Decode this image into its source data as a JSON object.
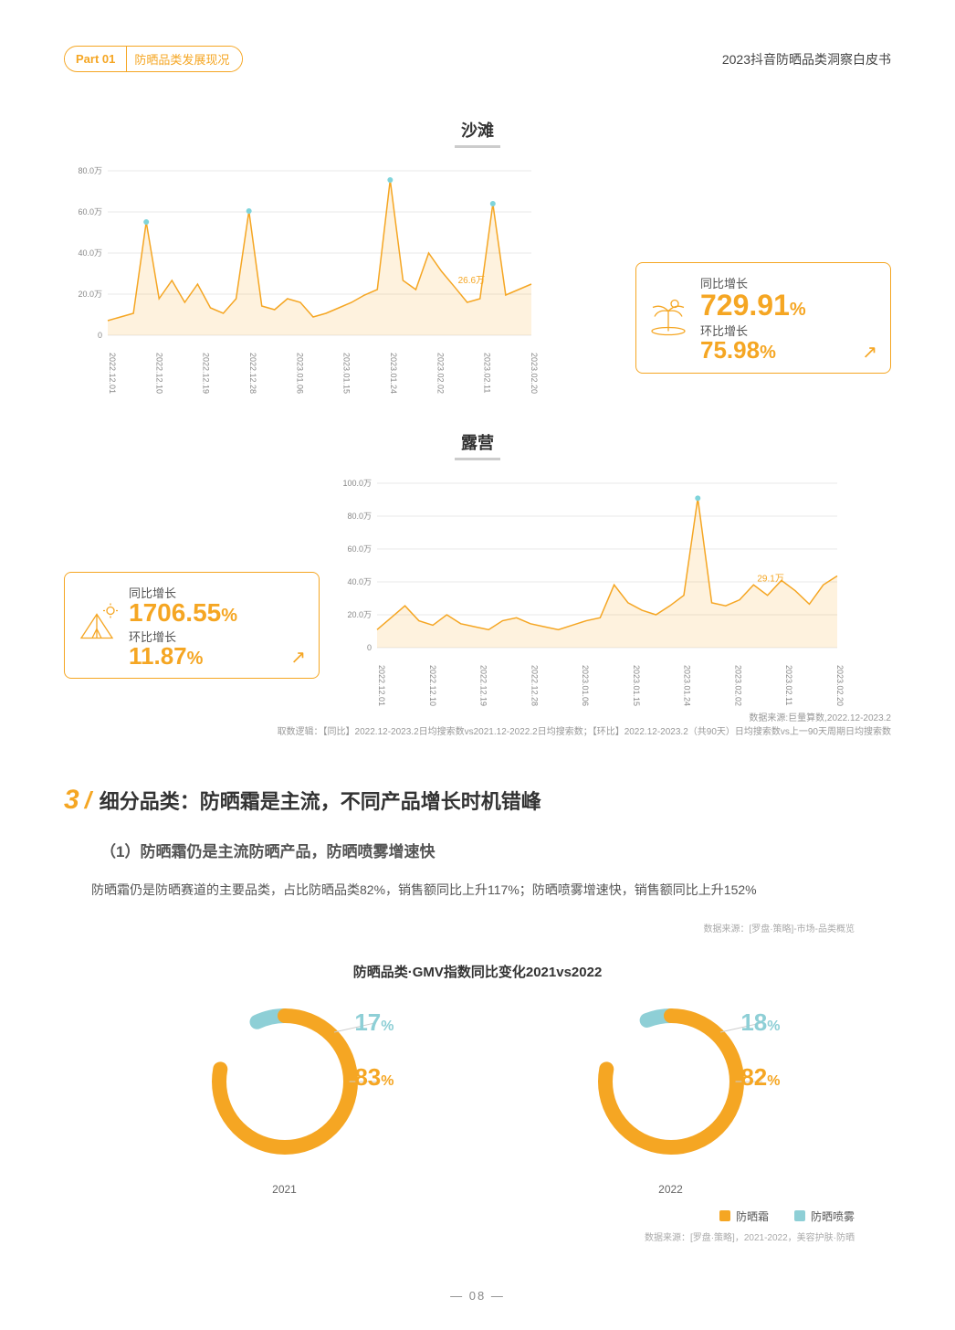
{
  "header": {
    "part_label": "Part 01",
    "part_title": "防晒品类发展现况",
    "doc_title": "2023抖音防晒品类洞察白皮书"
  },
  "chart1": {
    "title": "沙滩",
    "type": "line",
    "ylim": [
      0,
      90
    ],
    "yticks": [
      "0",
      "20.0万",
      "40.0万",
      "60.0万",
      "80.0万"
    ],
    "xticks": [
      "2022.12.01",
      "2022.12.10",
      "2022.12.19",
      "2022.12.28",
      "2023.01.06",
      "2023.01.15",
      "2023.01.24",
      "2023.02.02",
      "2023.02.11",
      "2023.02.20"
    ],
    "values": [
      8,
      10,
      12,
      62,
      20,
      30,
      18,
      28,
      15,
      12,
      20,
      68,
      16,
      14,
      20,
      18,
      10,
      12,
      15,
      18,
      22,
      25,
      85,
      30,
      25,
      45,
      35,
      26.6,
      18,
      20,
      72,
      22,
      25,
      28
    ],
    "data_label": "26.6万",
    "line_color": "#F5A623",
    "fill_color": "rgba(245,166,35,0.15)",
    "marker_color": "#7fd4db",
    "grid_color": "#e8e8e8",
    "label_fontsize": 10,
    "card": {
      "yoy_label": "同比增长",
      "yoy_value": "729.91",
      "mom_label": "环比增长",
      "mom_value": "75.98"
    }
  },
  "chart2": {
    "title": "露营",
    "type": "line",
    "ylim": [
      0,
      110
    ],
    "yticks": [
      "0",
      "20.0万",
      "40.0万",
      "60.0万",
      "80.0万",
      "100.0万"
    ],
    "xticks": [
      "2022.12.01",
      "2022.12.10",
      "2022.12.19",
      "2022.12.28",
      "2023.01.06",
      "2023.01.15",
      "2023.01.24",
      "2023.02.02",
      "2023.02.11",
      "2023.02.20"
    ],
    "values": [
      12,
      20,
      28,
      18,
      15,
      22,
      16,
      14,
      12,
      18,
      20,
      16,
      14,
      12,
      15,
      18,
      20,
      42,
      30,
      25,
      22,
      28,
      35,
      100,
      30,
      28,
      32,
      42,
      35,
      45,
      38,
      29.1,
      42,
      48
    ],
    "data_label": "29.1万",
    "line_color": "#F5A623",
    "fill_color": "rgba(245,166,35,0.15)",
    "marker_color": "#7fd4db",
    "grid_color": "#e8e8e8",
    "card": {
      "yoy_label": "同比增长",
      "yoy_value": "1706.55",
      "mom_label": "环比增长",
      "mom_value": "11.87"
    }
  },
  "source1": {
    "line1": "数据来源:巨量算数,2022.12-2023.2",
    "line2": "取数逻辑：【同比】2022.12-2023.2日均搜索数vs2021.12-2022.2日均搜索数；【环比】2022.12-2023.2（共90天）日均搜索数vs上一90天周期日均搜索数"
  },
  "section3": {
    "num": "3",
    "title": "细分品类：防晒霜是主流，不同产品增长时机错峰",
    "sub1": "（1）防晒霜仍是主流防晒产品，防晒喷雾增速快",
    "body": "防晒霜仍是防晒赛道的主要品类，占比防晒品类82%，销售额同比上升117%；防晒喷雾增速快，销售额同比上升152%",
    "src_top": "数据来源：[罗盘·策略]-市场-品类概览"
  },
  "donut": {
    "title": "防晒品类·GMV指数同比变化2021vs2022",
    "color_main": "#F5A623",
    "color_sub": "#8ecfd6",
    "stroke_width": 16,
    "items": [
      {
        "year": "2021",
        "main_pct": 83,
        "sub_pct": 17
      },
      {
        "year": "2022",
        "main_pct": 82,
        "sub_pct": 18
      }
    ],
    "legend": [
      {
        "label": "防晒霜",
        "color": "#F5A623"
      },
      {
        "label": "防晒喷雾",
        "color": "#8ecfd6"
      }
    ],
    "src": "数据来源：[罗盘·策略]，2021-2022，美容护肤·防晒"
  },
  "pagenum": "08"
}
